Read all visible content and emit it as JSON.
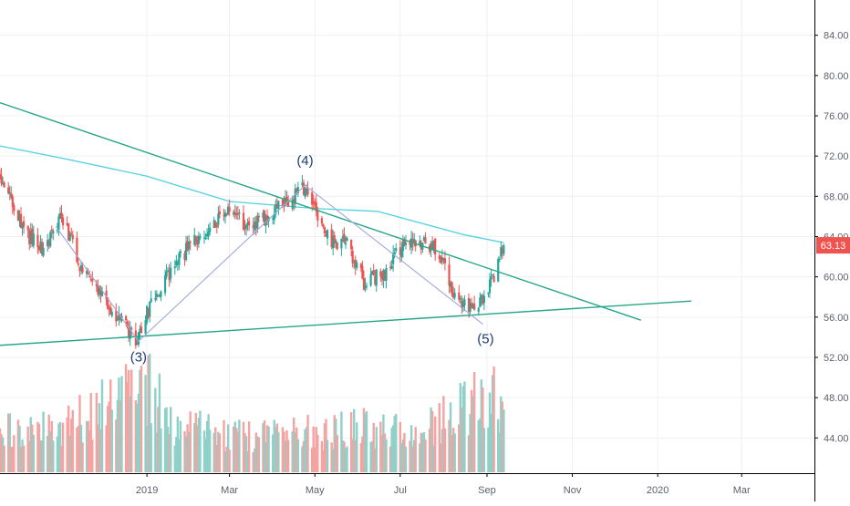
{
  "chart_data": {
    "type": "candlestick",
    "price_axis": {
      "ylim": [
        40.5,
        87.5
      ],
      "ticks": [
        44,
        48,
        52,
        56,
        60,
        64,
        68,
        72,
        76,
        80,
        84
      ],
      "tick_labels": [
        "44.00",
        "48.00",
        "52.00",
        "56.00",
        "60.00",
        "64.00",
        "68.00",
        "72.00",
        "76.00",
        "80.00",
        "84.00"
      ]
    },
    "time_axis": {
      "start": "2018-09-18",
      "end": "2020-04-22",
      "ticks": [
        "2019-01-01",
        "2019-03-01",
        "2019-05-01",
        "2019-07-01",
        "2019-09-01",
        "2019-11-01",
        "2020-01-01",
        "2020-03-01"
      ],
      "tick_labels": [
        "2019",
        "Mar",
        "May",
        "Jul",
        "Sep",
        "Nov",
        "2020",
        "Mar"
      ]
    },
    "grid": true,
    "last_price": {
      "value": 63.13,
      "label": "63.13",
      "color": "#ef5350"
    },
    "colors": {
      "up": "#26a69a",
      "down": "#ef5350",
      "vol_up": "#8fd0c8",
      "vol_down": "#f5a3a1",
      "ma": "#4dd0e1",
      "trendline": "#26a689",
      "wave": "#9fa8da"
    },
    "candles_anchor_path": [
      [
        "2018-09-18",
        70.0
      ],
      [
        "2018-10-05",
        64.5
      ],
      [
        "2018-10-20",
        62.5
      ],
      [
        "2018-11-01",
        66.0
      ],
      [
        "2018-11-15",
        61.0
      ],
      [
        "2018-12-05",
        57.0
      ],
      [
        "2018-12-24",
        53.8
      ],
      [
        "2019-01-08",
        58.5
      ],
      [
        "2019-01-25",
        62.0
      ],
      [
        "2019-02-12",
        64.5
      ],
      [
        "2019-03-01",
        66.5
      ],
      [
        "2019-03-15",
        64.8
      ],
      [
        "2019-04-01",
        66.5
      ],
      [
        "2019-04-25",
        69.0
      ],
      [
        "2019-05-08",
        64.0
      ],
      [
        "2019-05-25",
        63.0
      ],
      [
        "2019-06-05",
        59.5
      ],
      [
        "2019-06-20",
        60.5
      ],
      [
        "2019-07-05",
        63.5
      ],
      [
        "2019-07-25",
        63.2
      ],
      [
        "2019-08-10",
        58.0
      ],
      [
        "2019-08-22",
        56.5
      ],
      [
        "2019-08-28",
        57.5
      ],
      [
        "2019-09-05",
        59.5
      ],
      [
        "2019-09-13",
        63.13
      ]
    ],
    "volume_anchor_path": [
      [
        "2018-09-18",
        0.4
      ],
      [
        "2018-11-01",
        0.45
      ],
      [
        "2018-12-10",
        0.7
      ],
      [
        "2018-12-24",
        1.0
      ],
      [
        "2019-01-20",
        0.5
      ],
      [
        "2019-03-01",
        0.35
      ],
      [
        "2019-05-01",
        0.4
      ],
      [
        "2019-06-01",
        0.45
      ],
      [
        "2019-07-15",
        0.4
      ],
      [
        "2019-08-15",
        0.65
      ],
      [
        "2019-09-13",
        0.75
      ]
    ],
    "moving_average": [
      [
        "2018-09-18",
        73.0
      ],
      [
        "2018-11-01",
        71.8
      ],
      [
        "2019-01-01",
        70.0
      ],
      [
        "2019-03-01",
        67.5
      ],
      [
        "2019-05-01",
        66.8
      ],
      [
        "2019-06-15",
        66.5
      ],
      [
        "2019-08-15",
        64.2
      ],
      [
        "2019-09-13",
        63.4
      ]
    ],
    "trendlines": [
      {
        "points": [
          [
            "2018-09-18",
            77.3
          ],
          [
            "2019-12-20",
            55.7
          ]
        ]
      },
      {
        "points": [
          [
            "2018-09-18",
            53.2
          ],
          [
            "2020-01-25",
            57.6
          ]
        ]
      }
    ],
    "wave_path": [
      [
        "2018-10-28",
        65.0
      ],
      [
        "2018-12-26",
        53.6
      ],
      [
        "2019-04-24",
        69.1
      ],
      [
        "2019-08-29",
        55.3
      ]
    ],
    "wave_labels": [
      {
        "text": "(3)",
        "date": "2018-12-26",
        "price": 51.6
      },
      {
        "text": "(4)",
        "date": "2019-04-24",
        "price": 71.1
      },
      {
        "text": "(5)",
        "date": "2019-08-31",
        "price": 53.4
      }
    ]
  }
}
